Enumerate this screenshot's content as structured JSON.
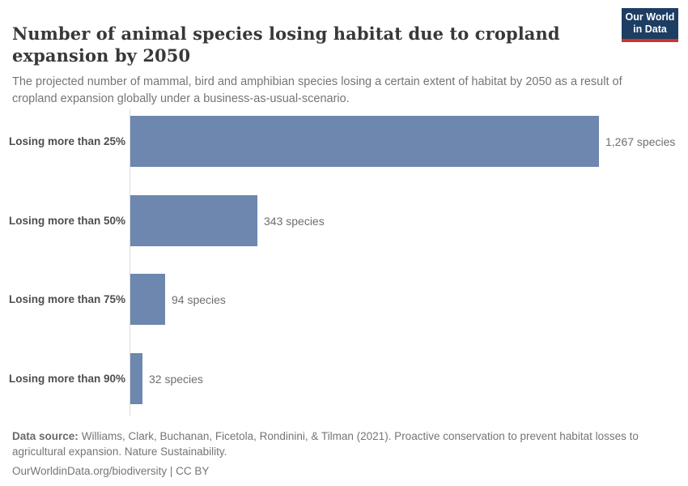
{
  "header": {
    "title": "Number of animal species losing habitat due to cropland expansion by 2050",
    "subtitle": "The projected number of mammal, bird and amphibian species losing a certain extent of habitat by 2050 as a result of cropland expansion globally under a business-as-usual-scenario.",
    "logo": {
      "line1": "Our World",
      "line2": "in Data",
      "bg_color": "#1d3d63",
      "accent_color": "#cc342e"
    }
  },
  "chart_data": {
    "type": "bar",
    "orientation": "horizontal",
    "title": "Number of animal species losing habitat due to cropland expansion by 2050",
    "categories": [
      "Losing more than 25%",
      "Losing more than 50%",
      "Losing more than 75%",
      "Losing more than 90%"
    ],
    "values": [
      1267,
      343,
      94,
      32
    ],
    "value_labels": [
      "1,267 species",
      "343 species",
      "94 species",
      "32 species"
    ],
    "unit": "species",
    "xlim": [
      0,
      1267
    ],
    "grid": false,
    "legend": "none",
    "bar_color": "#6d87ae",
    "axis_line_color": "#dcdcdc"
  },
  "footer": {
    "source_label": "Data source:",
    "source_text": "Williams, Clark, Buchanan, Ficetola, Rondinini, & Tilman (2021). Proactive conservation to prevent habitat losses to agricultural expansion. Nature Sustainability.",
    "license_text": "OurWorldinData.org/biodiversity | CC BY"
  }
}
